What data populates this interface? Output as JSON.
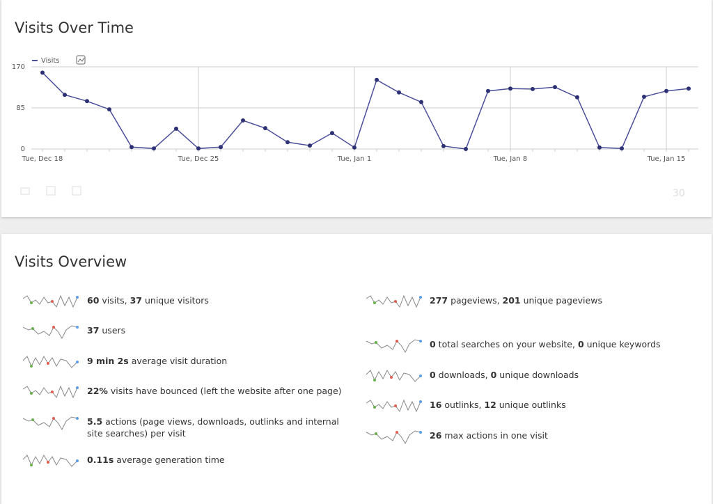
{
  "chart_data": {
    "type": "line",
    "title": "Visits Over Time",
    "categories": [
      "Tue, Dec 18",
      null,
      null,
      null,
      null,
      null,
      null,
      "Tue, Dec 25",
      null,
      null,
      null,
      null,
      null,
      null,
      "Tue, Jan 1",
      null,
      null,
      null,
      null,
      null,
      null,
      "Tue, Jan 8",
      null,
      null,
      null,
      null,
      null,
      null,
      "Tue, Jan 15",
      null
    ],
    "series": [
      {
        "name": "Visits",
        "color": "#4b4f9a",
        "values": [
          158,
          112,
          99,
          82,
          4,
          1,
          42,
          1,
          4,
          59,
          43,
          14,
          7,
          33,
          3,
          143,
          117,
          97,
          6,
          0,
          120,
          125,
          124,
          128,
          107,
          3,
          1,
          108,
          120,
          125
        ]
      }
    ],
    "ylim": [
      0,
      170
    ],
    "yticks": [
      0,
      85,
      170
    ],
    "grid": true,
    "limit": 30
  },
  "overview": {
    "title": "Visits Overview",
    "left": [
      {
        "parts": [
          "60",
          " visits, ",
          "37",
          " unique visitors"
        ]
      },
      {
        "parts": [
          "37",
          " users"
        ]
      },
      {
        "parts": [
          "9 min 2s",
          " average visit duration"
        ]
      },
      {
        "parts": [
          "22%",
          " visits have bounced (left the website after one page)"
        ]
      },
      {
        "parts": [
          "5.5",
          " actions (page views, downloads, outlinks and internal site searches) per visit"
        ]
      },
      {
        "parts": [
          "0.11s",
          " average generation time"
        ]
      }
    ],
    "right": [
      {
        "parts": [
          "277",
          " pageviews, ",
          "201",
          " unique pageviews"
        ]
      },
      {
        "parts": [
          "0",
          " total searches on your website, ",
          "0",
          " unique keywords"
        ]
      },
      {
        "parts": [
          "0",
          " downloads, ",
          "0",
          " unique downloads"
        ]
      },
      {
        "parts": [
          "16",
          " outlinks, ",
          "12",
          " unique outlinks"
        ]
      },
      {
        "parts": [
          "26",
          " max actions in one visit"
        ]
      }
    ]
  }
}
